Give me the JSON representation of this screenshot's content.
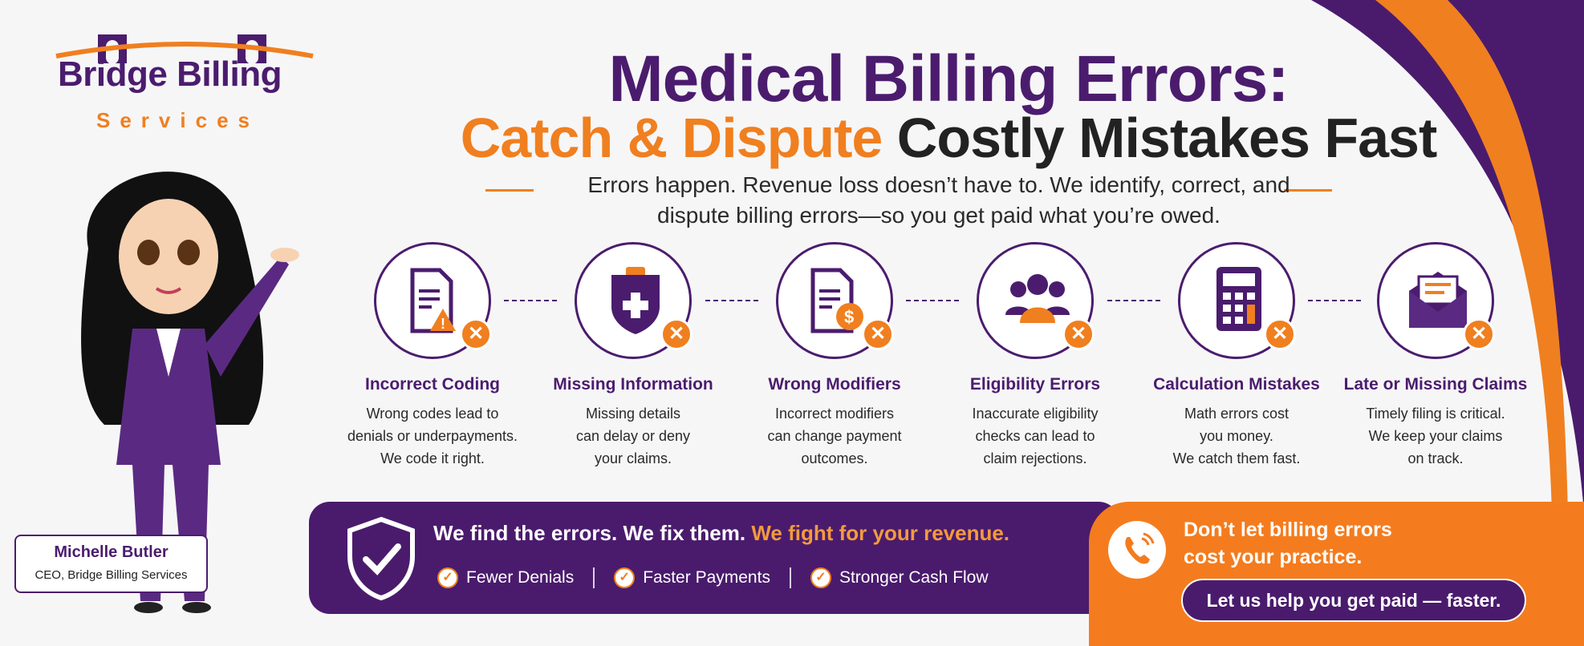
{
  "logo": {
    "main": "Bridge Billing",
    "sub": "Services"
  },
  "header": {
    "title_line1": "Medical Billing Errors:",
    "title_line2_highlight": "Catch & Dispute",
    "title_line2_rest": "Costly Mistakes Fast",
    "subtitle_line1": "Errors happen. Revenue loss doesn’t have to. We identify, correct, and",
    "subtitle_line2": "dispute billing errors—so you get paid what you’re owed."
  },
  "features": [
    {
      "icon": "document-warning-icon",
      "title": "Incorrect Coding",
      "desc": [
        "Wrong codes lead to",
        "denials or underpayments.",
        "We code it right."
      ]
    },
    {
      "icon": "clipboard-medical-icon",
      "title": "Missing Information",
      "desc": [
        "Missing details",
        "can delay or deny",
        "your claims."
      ]
    },
    {
      "icon": "document-dollar-icon",
      "title": "Wrong Modifiers",
      "desc": [
        "Incorrect modifiers",
        "can change payment",
        "outcomes."
      ]
    },
    {
      "icon": "people-icon",
      "title": "Eligibility Errors",
      "desc": [
        "Inaccurate eligibility",
        "checks can lead to",
        "claim rejections."
      ]
    },
    {
      "icon": "calculator-icon",
      "title": "Calculation Mistakes",
      "desc": [
        "Math errors cost",
        "you money.",
        "We catch them fast."
      ]
    },
    {
      "icon": "envelope-icon",
      "title": "Late or Missing Claims",
      "desc": [
        "Timely filing is critical.",
        "We keep your claims",
        "on track."
      ]
    }
  ],
  "banner": {
    "main": "We find the errors. We fix them.",
    "highlight": "We fight for your revenue.",
    "checks": [
      "Fewer Denials",
      "Faster Payments",
      "Stronger Cash Flow"
    ]
  },
  "cta": {
    "line1": "Don’t let billing errors",
    "line2": "cost your practice.",
    "button": "Let us help you get paid — faster."
  },
  "person": {
    "name": "Michelle Butler",
    "role": "CEO, Bridge Billing Services"
  },
  "colors": {
    "purple": "#4b1c6e",
    "orange": "#f07f1f",
    "background": "#f6f6f7"
  }
}
